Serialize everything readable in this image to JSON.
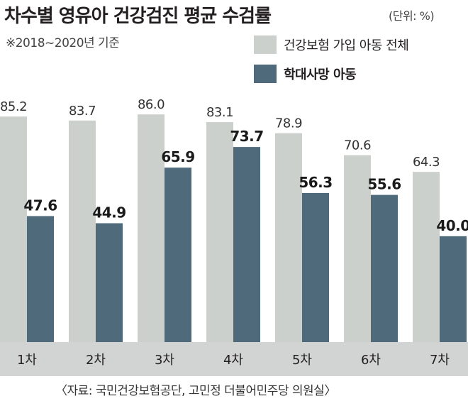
{
  "header": {
    "title": "차수별 영유아 건강검진 평균 수검률",
    "unit": "(단위: %)",
    "subtitle": "※2018~2020년 기준"
  },
  "footer": {
    "source": "〈자료: 국민건강보험공단, 고민정 더불어민주당 의원실〉"
  },
  "colors": {
    "series_all": "#ccd0cd",
    "series_abuse": "#4f6a7b",
    "band": "#d2d4d3",
    "text": "#231f20"
  },
  "chart_data": {
    "type": "bar",
    "title": "차수별 영유아 건강검진 평균 수검률",
    "categories": [
      "1차",
      "2차",
      "3차",
      "4차",
      "5차",
      "6차",
      "7차"
    ],
    "series": [
      {
        "name": "건강보험 가입 아동 전체",
        "values": [
          85.2,
          83.7,
          86.0,
          83.1,
          78.9,
          70.6,
          64.3
        ]
      },
      {
        "name": "학대사망 아동",
        "values": [
          47.6,
          44.9,
          65.9,
          73.7,
          56.3,
          55.6,
          40.0
        ]
      }
    ],
    "value_labels": [
      [
        "85.2",
        "83.7",
        "86.0",
        "83.1",
        "78.9",
        "70.6",
        "64.3"
      ],
      [
        "47.6",
        "44.9",
        "65.9",
        "73.7",
        "56.3",
        "55.6",
        "40.0"
      ]
    ],
    "ylim": [
      0,
      100
    ],
    "grid": false,
    "legend_position": "top-right"
  }
}
